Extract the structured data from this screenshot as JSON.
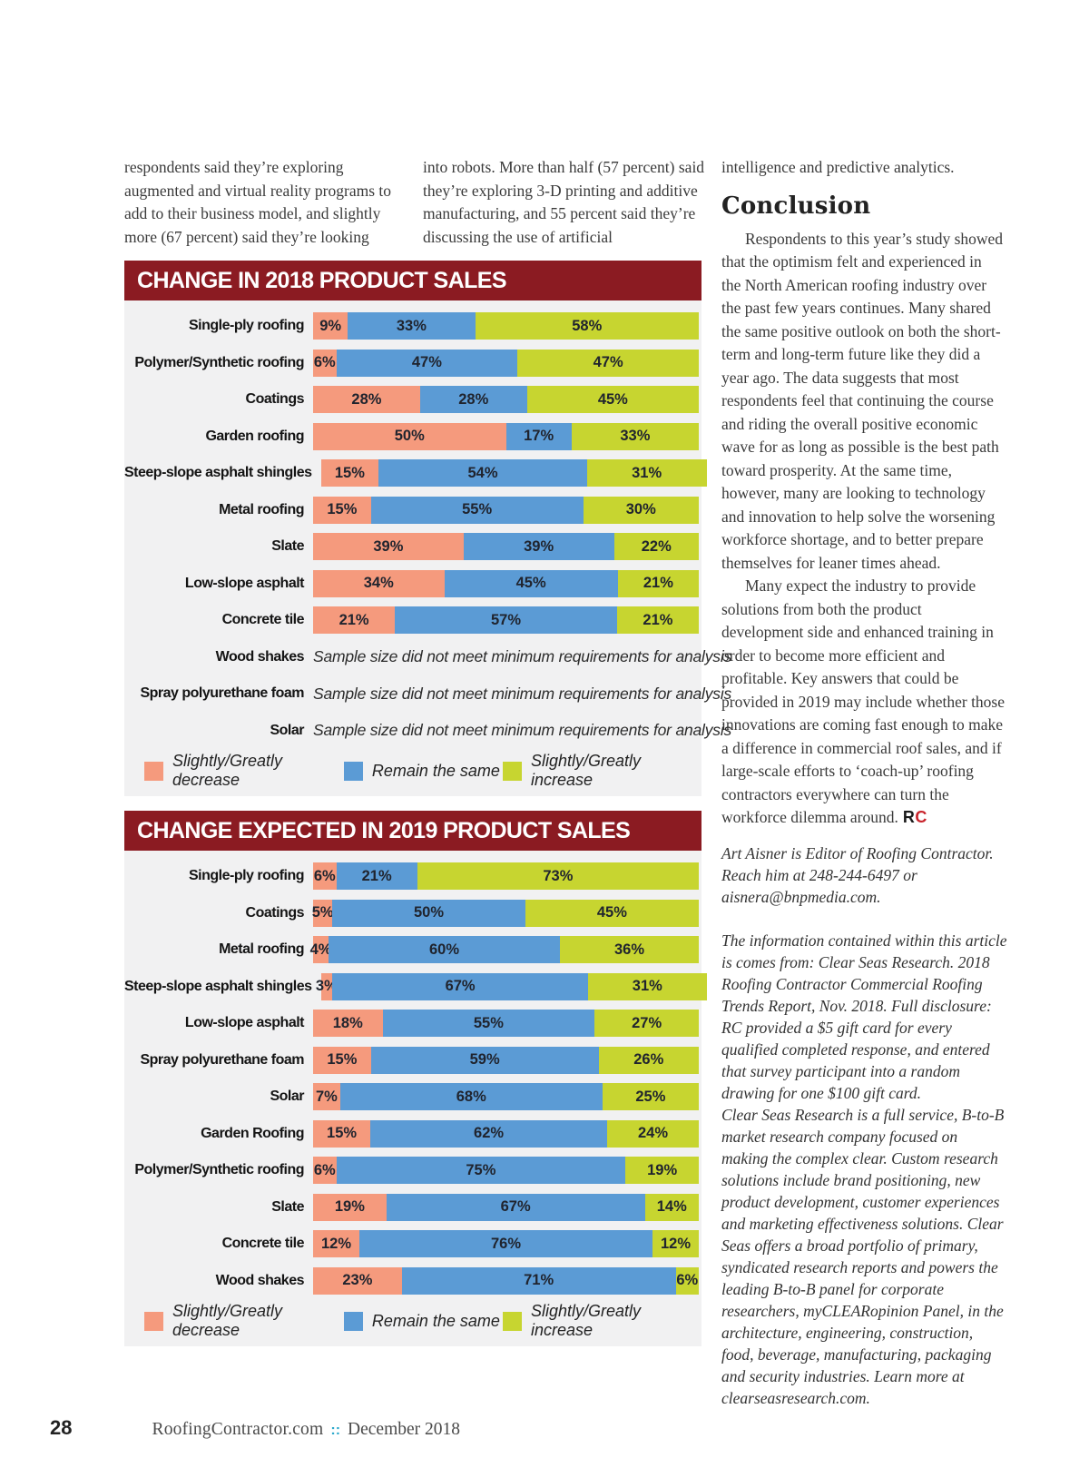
{
  "colors": {
    "header_maroon": "#8B1B22",
    "chart_bg": "#F1F1F2",
    "series": [
      "#F59A7D",
      "#5B9BD5",
      "#C7D530"
    ],
    "footer_separator": "#2CA9CC",
    "endmark_red": "#C8232B"
  },
  "text": {
    "col1": "respondents said they’re exploring augmented and virtual reality programs to add to their business model, and slightly more (67 percent) said they’re looking",
    "col2": "into robots. More than half (57 percent) said they’re exploring 3-D printing and additive manufacturing, and 55 percent said they’re discussing the use of artificial",
    "col3_intro": "intelligence and predictive analytics.",
    "conclusion_heading": "Conclusion",
    "conclusion_p1": "Respondents to this year’s study showed that the optimism felt and experienced in the North American roofing industry over the past few years continues. Many shared the same positive outlook on both the short-term and long-term future like they did a year ago. The data suggests that most respondents feel that continuing the course and riding the overall positive economic wave for as long as possible is the best path toward prosperity. At the same time, however, many are looking to technology and innovation to help solve the worsening workforce shortage, and to better prepare themselves for leaner times ahead.",
    "conclusion_p2": "Many expect the industry to provide solutions from both the product development side and enhanced training in order to become more efficient and profitable. Key answers that could be provided in 2019 may include whether those innovations are coming fast enough to make a difference in commercial roof sales, and if large-scale efforts to ‘coach-up’ roofing contractors everywhere can turn the workforce dilemma around.",
    "endmark_r": "R",
    "endmark_c": "C",
    "bio": "Art Aisner is Editor of Roofing Contractor. Reach him at 248-244-6497 or aisnera@bnpmedia.com.",
    "disclosure1": "The information contained within this article is comes from: Clear Seas Research. 2018 Roofing Contractor Commercial Roofing Trends Report, Nov. 2018. Full disclosure: RC provided a $5 gift card for every qualified completed response, and entered that survey participant into a random drawing for one $100 gift card.",
    "disclosure2": "Clear Seas Research is a full service, B-to-B market research company focused on making the complex clear. Custom research solutions include brand positioning, new product development, customer experiences and marketing effectiveness solutions. Clear Seas offers a broad portfolio of primary, syndicated research reports and powers the leading B-to-B panel for corporate researchers, myCLEARopinion Panel, in the architecture, engineering, construction, food, beverage, manufacturing, packaging and security industries. Learn more at clearseasresearch.com."
  },
  "footer": {
    "page_number": "28",
    "site": "RoofingContractor.com",
    "separator": "::",
    "date": "December 2018"
  },
  "chart_data": [
    {
      "type": "bar",
      "stacked": true,
      "orientation": "horizontal",
      "title": "CHANGE IN 2018 PRODUCT SALES",
      "value_unit": "%",
      "xlim": [
        0,
        100
      ],
      "grid": false,
      "legend_position": "bottom",
      "legend": [
        "Slightly/Greatly decrease",
        "Remain the same",
        "Slightly/Greatly increase"
      ],
      "note_text": "Sample size did not meet minimum requirements for analysis",
      "rows": [
        {
          "label": "Single-ply roofing",
          "values": [
            9,
            33,
            58
          ]
        },
        {
          "label": "Polymer/Synthetic roofing",
          "values": [
            6,
            47,
            47
          ]
        },
        {
          "label": "Coatings",
          "values": [
            28,
            28,
            45
          ]
        },
        {
          "label": "Garden roofing",
          "values": [
            50,
            17,
            33
          ]
        },
        {
          "label": "Steep-slope asphalt shingles",
          "values": [
            15,
            54,
            31
          ]
        },
        {
          "label": "Metal roofing",
          "values": [
            15,
            55,
            30
          ]
        },
        {
          "label": "Slate",
          "values": [
            39,
            39,
            22
          ]
        },
        {
          "label": "Low-slope asphalt",
          "values": [
            34,
            45,
            21
          ]
        },
        {
          "label": "Concrete tile",
          "values": [
            21,
            57,
            21
          ]
        },
        {
          "label": "Wood shakes",
          "note": "Sample size did not meet minimum requirements for analysis"
        },
        {
          "label": "Spray polyurethane foam",
          "note": "Sample size did not meet minimum requirements for analysis"
        },
        {
          "label": "Solar",
          "note": "Sample size did not meet minimum requirements for analysis"
        }
      ]
    },
    {
      "type": "bar",
      "stacked": true,
      "orientation": "horizontal",
      "title": "CHANGE EXPECTED IN 2019 PRODUCT SALES",
      "value_unit": "%",
      "xlim": [
        0,
        100
      ],
      "grid": false,
      "legend_position": "bottom",
      "legend": [
        "Slightly/Greatly decrease",
        "Remain the same",
        "Slightly/Greatly increase"
      ],
      "rows": [
        {
          "label": "Single-ply roofing",
          "values": [
            6,
            21,
            73
          ]
        },
        {
          "label": "Coatings",
          "values": [
            5,
            50,
            45
          ]
        },
        {
          "label": "Metal roofing",
          "values": [
            4,
            60,
            36
          ]
        },
        {
          "label": "Steep-slope asphalt shingles",
          "values": [
            3,
            67,
            31
          ]
        },
        {
          "label": "Low-slope asphalt",
          "values": [
            18,
            55,
            27
          ]
        },
        {
          "label": "Spray polyurethane foam",
          "values": [
            15,
            59,
            26
          ]
        },
        {
          "label": "Solar",
          "values": [
            7,
            68,
            25
          ]
        },
        {
          "label": "Garden Roofing",
          "values": [
            15,
            62,
            24
          ]
        },
        {
          "label": "Polymer/Synthetic roofing",
          "values": [
            6,
            75,
            19
          ]
        },
        {
          "label": "Slate",
          "values": [
            19,
            67,
            14
          ]
        },
        {
          "label": "Concrete tile",
          "values": [
            12,
            76,
            12
          ]
        },
        {
          "label": "Wood shakes",
          "values": [
            23,
            71,
            6
          ]
        }
      ]
    }
  ]
}
